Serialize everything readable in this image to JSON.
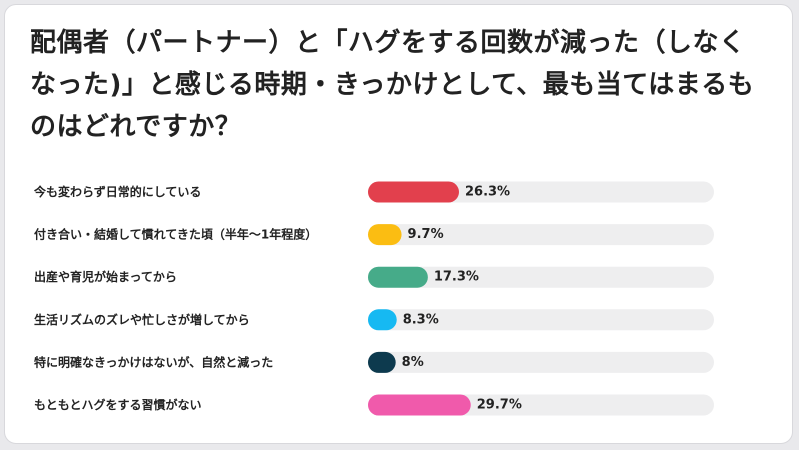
{
  "chart_data": {
    "type": "bar",
    "orientation": "horizontal",
    "title": "配偶者（パートナー）と「ハグをする回数が減った（しなくなった)」と感じる時期・きっかけとして、最も当てはまるものはどれですか？",
    "categories": [
      "今も変わらず日常的にしている",
      "付き合い・結婚して慣れてきた頃（半年〜1年程度）",
      "出産や育児が始まってから",
      "生活リズムのズレや忙しさが増してから",
      "特に明確なきっかけはないが、自然と減った",
      "もともとハグをする習慣がない"
    ],
    "values": [
      26.3,
      9.7,
      17.3,
      8.3,
      8,
      29.7
    ],
    "value_labels": [
      "26.3%",
      "9.7%",
      "17.3%",
      "8.3%",
      "8%",
      "29.7%"
    ],
    "colors": [
      "#e2404d",
      "#fbbd12",
      "#46ab89",
      "#16b9f2",
      "#0d3a4e",
      "#f05aab"
    ],
    "track_color": "#eeeeef",
    "xlim": [
      0,
      100
    ],
    "grid": false,
    "legend": "none"
  }
}
